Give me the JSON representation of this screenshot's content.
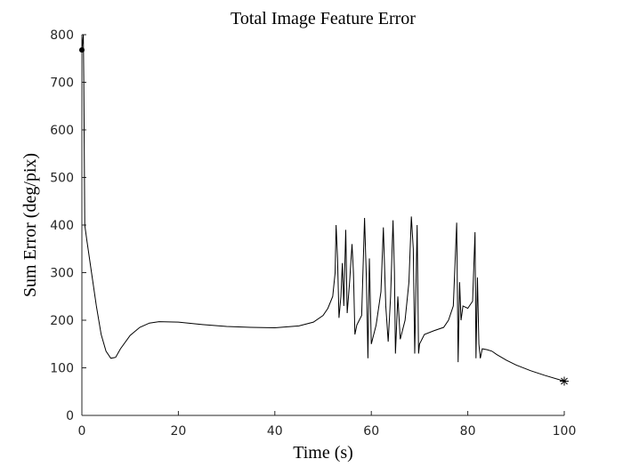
{
  "chart_data": {
    "type": "line",
    "title": "Total Image Feature Error",
    "x_label": "Time (s)",
    "y_label": "Sum Error (deg/pix)",
    "xlim": [
      0,
      100
    ],
    "xticks": [
      0,
      20,
      40,
      60,
      80,
      100
    ],
    "ylim": [
      0,
      800
    ],
    "yticks": [
      0,
      100,
      200,
      300,
      400,
      500,
      600,
      700,
      800
    ],
    "series": [
      {
        "color": "#000000",
        "marker": "none",
        "x": [
          0,
          0.3,
          0.4,
          0.6,
          1,
          2,
          3,
          4,
          5,
          6,
          7,
          8,
          10,
          12,
          14,
          16,
          20,
          25,
          30,
          35,
          40,
          45,
          48,
          50,
          51,
          52,
          52.5,
          52.7,
          53,
          53.3,
          53.7,
          54,
          54.3,
          54.7,
          55,
          55.5,
          56,
          56.3,
          56.6,
          57,
          58,
          58.6,
          59,
          59.3,
          59.6,
          60,
          61,
          62,
          62.5,
          63,
          63.5,
          64,
          64.5,
          64.8,
          65,
          65.5,
          66,
          67,
          67.8,
          68.3,
          68.7,
          69,
          69.5,
          69.8,
          70,
          71,
          73,
          75,
          76,
          77,
          77.7,
          78,
          78.3,
          78.6,
          79,
          80,
          81,
          81.5,
          81.7,
          82,
          82.3,
          82.6,
          83,
          84,
          85,
          86,
          88,
          90,
          93,
          96,
          100
        ],
        "values": [
          768,
          800,
          700,
          400,
          370,
          300,
          230,
          170,
          135,
          120,
          122,
          140,
          168,
          185,
          194,
          197,
          196,
          191,
          187,
          185,
          184,
          188,
          196,
          210,
          225,
          250,
          300,
          400,
          330,
          205,
          250,
          320,
          230,
          390,
          215,
          280,
          360,
          300,
          170,
          190,
          210,
          415,
          280,
          120,
          330,
          150,
          190,
          260,
          395,
          230,
          155,
          250,
          410,
          300,
          130,
          250,
          160,
          200,
          280,
          418,
          350,
          130,
          400,
          130,
          150,
          170,
          178,
          185,
          200,
          230,
          405,
          112,
          280,
          200,
          230,
          225,
          240,
          385,
          120,
          290,
          150,
          120,
          140,
          138,
          135,
          128,
          116,
          106,
          94,
          84,
          72
        ]
      },
      {
        "color": "#000000",
        "marker": "circle",
        "x": [
          0
        ],
        "values": [
          768
        ]
      },
      {
        "color": "#000000",
        "marker": "asterisk",
        "x": [
          100
        ],
        "values": [
          72
        ]
      }
    ]
  }
}
